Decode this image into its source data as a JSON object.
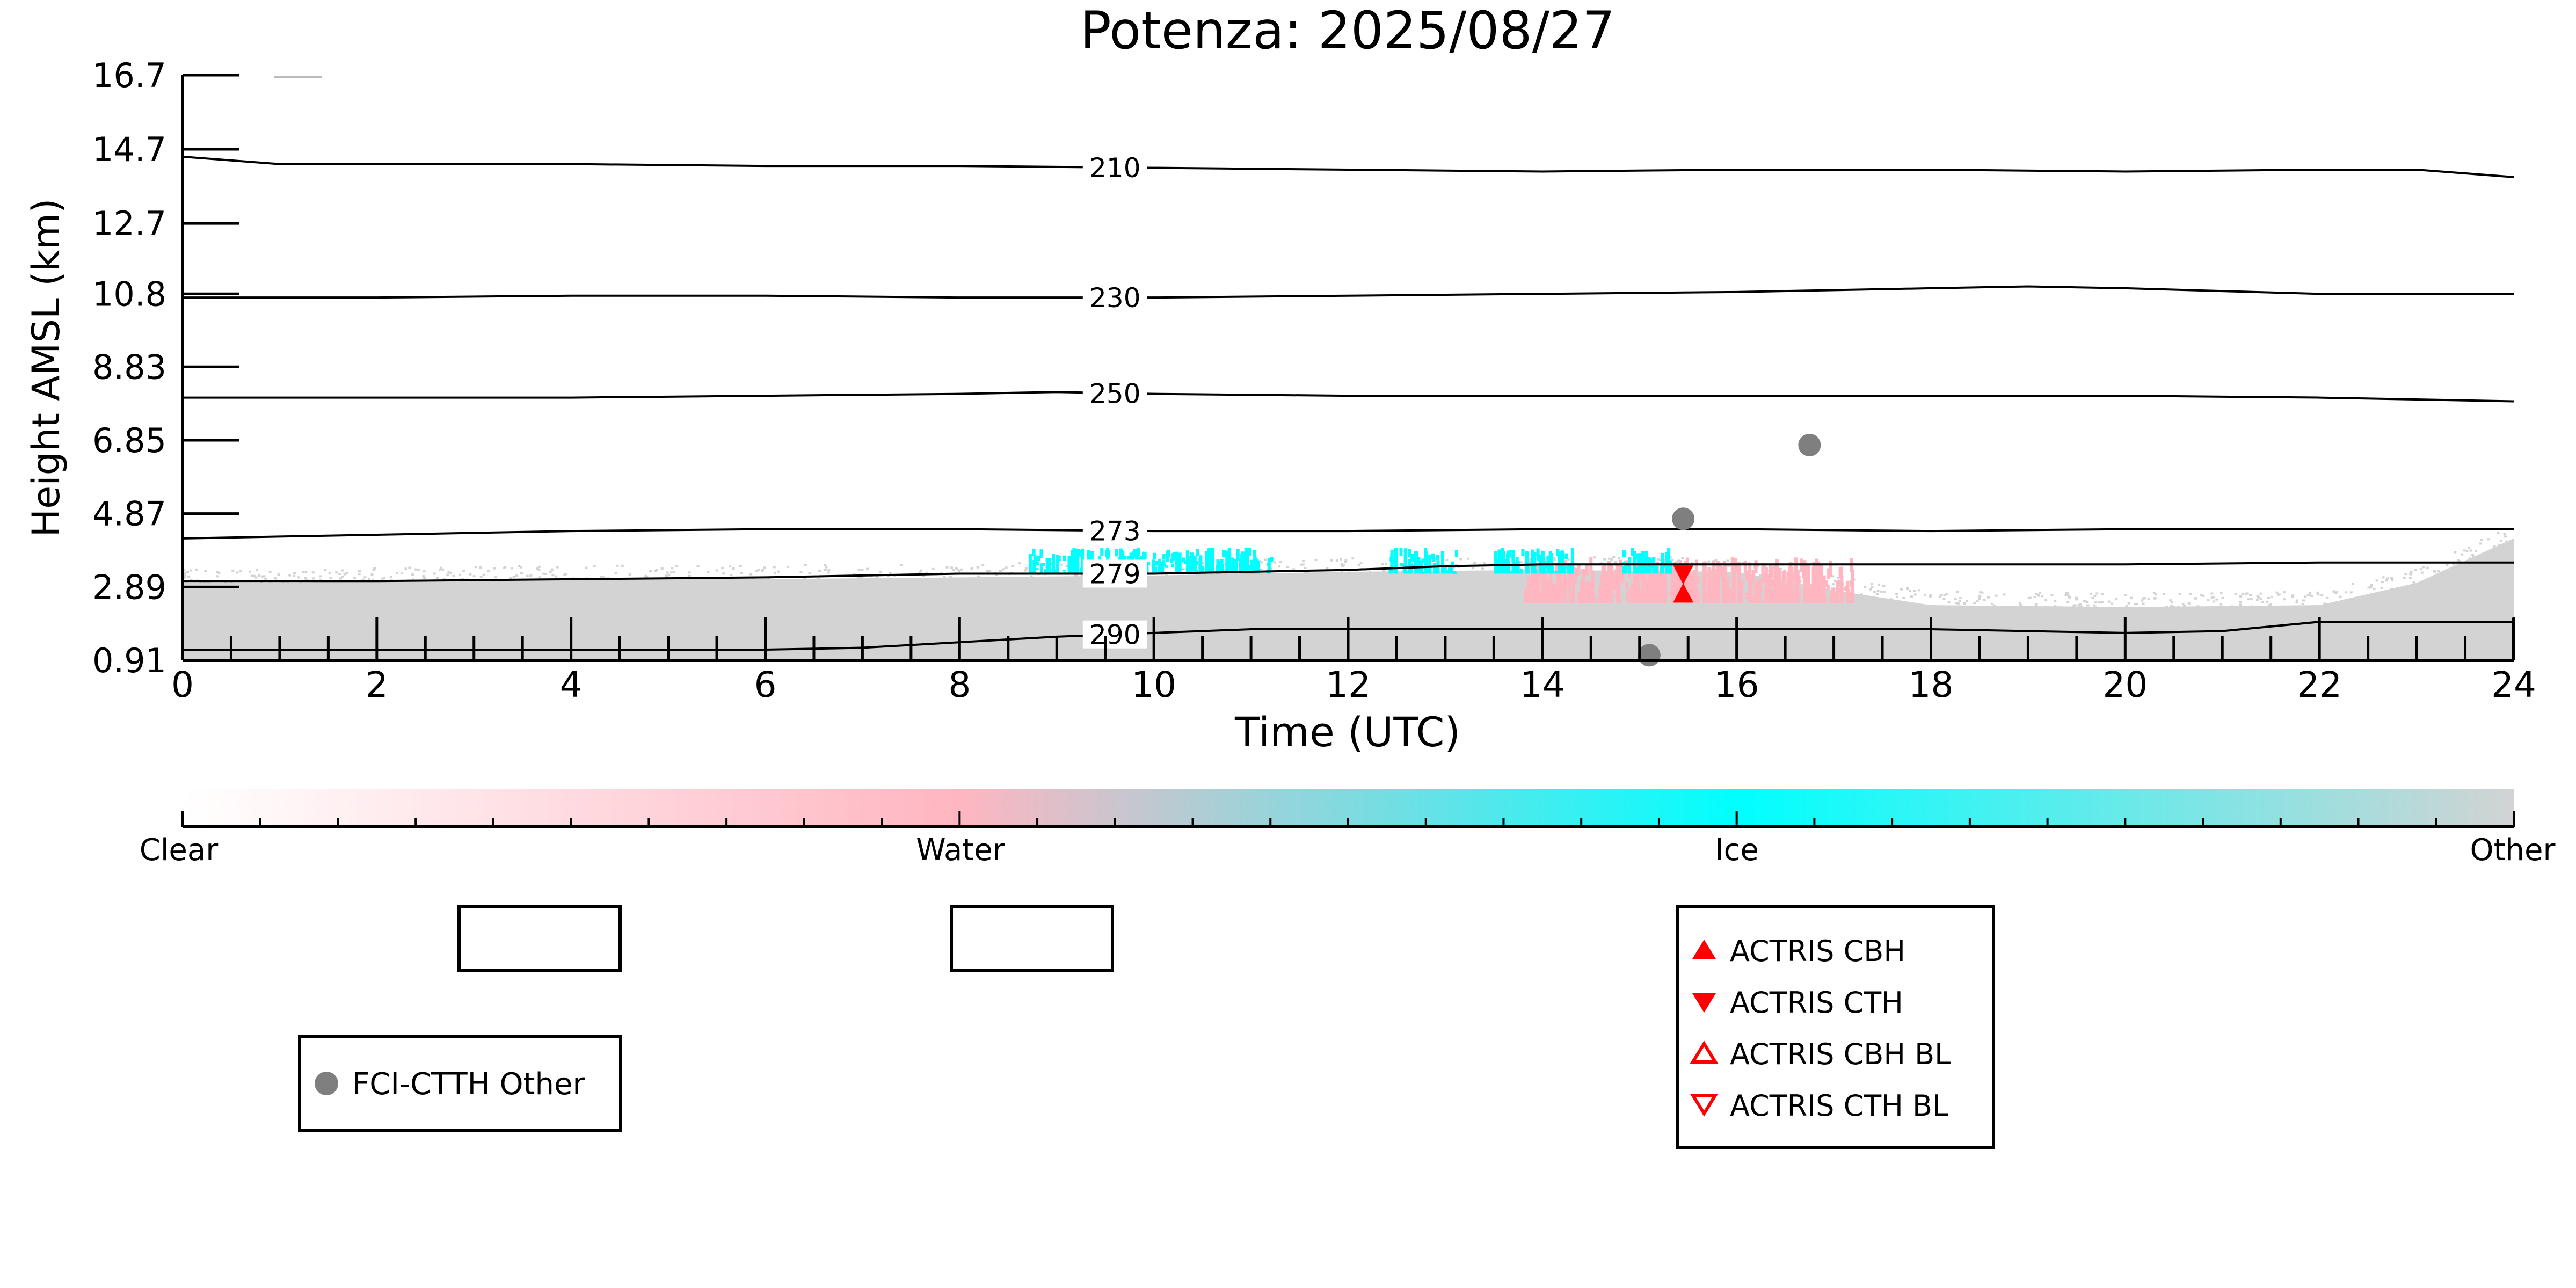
{
  "chart_data": {
    "type": "scatter",
    "title": "Potenza: 2025/08/27",
    "xlabel": "Time (UTC)",
    "ylabel": "Height AMSL (km)",
    "xlim": [
      0,
      24
    ],
    "ylim": [
      0.91,
      16.7
    ],
    "x_ticks": [
      "0",
      "2",
      "4",
      "6",
      "8",
      "10",
      "12",
      "14",
      "16",
      "18",
      "20",
      "22",
      "24"
    ],
    "y_ticks": [
      "0.91",
      "2.89",
      "4.87",
      "6.85",
      "8.83",
      "10.8",
      "12.7",
      "14.7",
      "16.7"
    ],
    "isotherms": [
      {
        "label": "210",
        "x": [
          0,
          1,
          4,
          6,
          8,
          10,
          12,
          14,
          16,
          18,
          20,
          22,
          23,
          24
        ],
        "y": [
          14.5,
          14.3,
          14.3,
          14.25,
          14.25,
          14.2,
          14.15,
          14.1,
          14.15,
          14.15,
          14.1,
          14.15,
          14.15,
          13.95
        ]
      },
      {
        "label": "230",
        "x": [
          0,
          2,
          4,
          6,
          8,
          10,
          12,
          14,
          16,
          18,
          19,
          20,
          22,
          24
        ],
        "y": [
          10.7,
          10.7,
          10.75,
          10.75,
          10.7,
          10.7,
          10.75,
          10.8,
          10.85,
          10.95,
          11.0,
          10.95,
          10.8,
          10.8
        ]
      },
      {
        "label": "250",
        "x": [
          0,
          2,
          4,
          6,
          8,
          9,
          10,
          12,
          14,
          16,
          18,
          20,
          22,
          24
        ],
        "y": [
          8.0,
          8.0,
          8.0,
          8.05,
          8.1,
          8.15,
          8.1,
          8.05,
          8.05,
          8.05,
          8.05,
          8.05,
          8.0,
          7.9
        ]
      },
      {
        "label": "273",
        "x": [
          0,
          1,
          2,
          4,
          6,
          8,
          10,
          12,
          14,
          16,
          18,
          20,
          22,
          24
        ],
        "y": [
          4.2,
          4.25,
          4.3,
          4.4,
          4.45,
          4.45,
          4.4,
          4.4,
          4.45,
          4.45,
          4.4,
          4.45,
          4.45,
          4.45
        ]
      },
      {
        "label": "279",
        "x": [
          0,
          2,
          4,
          6,
          8,
          10,
          12,
          13,
          14,
          16,
          18,
          20,
          22,
          24
        ],
        "y": [
          3.05,
          3.05,
          3.1,
          3.15,
          3.25,
          3.25,
          3.35,
          3.45,
          3.5,
          3.5,
          3.5,
          3.5,
          3.55,
          3.55
        ]
      },
      {
        "label": "290",
        "x": [
          0,
          2,
          4,
          6,
          7,
          8,
          9,
          10,
          11,
          12,
          14,
          16,
          18,
          20,
          21,
          22,
          23,
          24
        ],
        "y": [
          1.2,
          1.2,
          1.2,
          1.2,
          1.25,
          1.4,
          1.55,
          1.65,
          1.75,
          1.75,
          1.75,
          1.75,
          1.75,
          1.65,
          1.7,
          1.95,
          1.95,
          1.95
        ]
      }
    ],
    "series": [
      {
        "name": "FCI-CTTH Other",
        "marker": "circle",
        "color": "#7f7f7f",
        "x": [
          15.45,
          16.75,
          15.1
        ],
        "y": [
          4.73,
          6.72,
          1.05
        ]
      },
      {
        "name": "ACTRIS CBH",
        "marker": "triangle-up",
        "color": "#ff0000",
        "x": [
          15.45
        ],
        "y": [
          2.7
        ]
      },
      {
        "name": "ACTRIS CTH",
        "marker": "triangle-down",
        "color": "#ff0000",
        "x": [
          15.45
        ],
        "y": [
          3.25
        ]
      },
      {
        "name": "ACTRIS CBH BL",
        "marker": "triangle-up-open",
        "color": "#ff0000",
        "x": [],
        "y": []
      },
      {
        "name": "ACTRIS CTH BL",
        "marker": "triangle-down-open",
        "color": "#ff0000",
        "x": [],
        "y": []
      }
    ],
    "background": {
      "other_layer": {
        "color": "#d3d3d3",
        "x": [
          0,
          1,
          2,
          4,
          6,
          8,
          10,
          12,
          14,
          16,
          17,
          18,
          20,
          22,
          23,
          24
        ],
        "top": [
          3.0,
          3.0,
          3.05,
          3.1,
          3.1,
          3.15,
          3.2,
          3.3,
          3.35,
          3.3,
          2.8,
          2.4,
          2.35,
          2.4,
          3.0,
          4.2
        ]
      },
      "ice_regions": {
        "color": "#00ffff",
        "x_ranges": [
          [
            8.7,
            11.2
          ],
          [
            12.4,
            13.1
          ],
          [
            13.5,
            14.3
          ],
          [
            14.8,
            15.3
          ]
        ]
      },
      "water_regions": {
        "color": "#ffb6c1",
        "x_ranges": [
          [
            13.8,
            16.1
          ],
          [
            16.1,
            17.2
          ]
        ]
      }
    },
    "colorbar": {
      "labels": [
        "Clear",
        "Water",
        "Ice",
        "Other"
      ],
      "stops": [
        "#ffffff",
        "#ffb6c1",
        "#00ffff",
        "#d3d3d3"
      ]
    },
    "legends": {
      "fci": [
        "FCI-CTTH Other"
      ],
      "actris": [
        "ACTRIS CBH",
        "ACTRIS CTH",
        "ACTRIS CBH BL",
        "ACTRIS CTH BL"
      ]
    }
  }
}
